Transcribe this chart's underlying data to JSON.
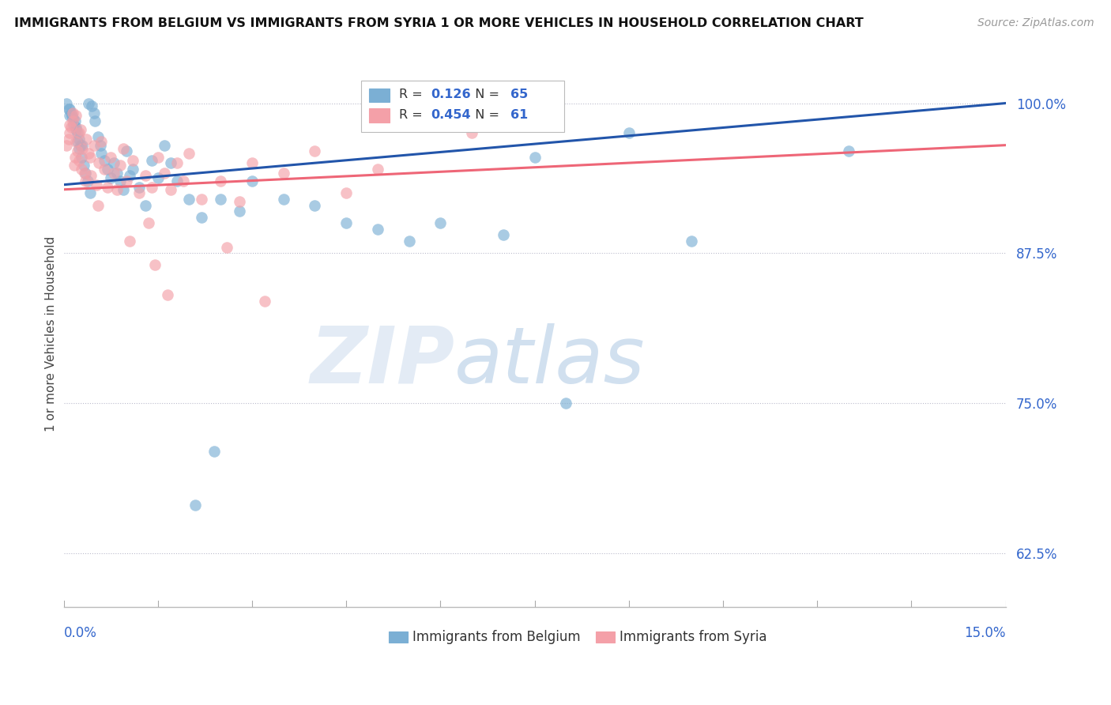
{
  "title": "IMMIGRANTS FROM BELGIUM VS IMMIGRANTS FROM SYRIA 1 OR MORE VEHICLES IN HOUSEHOLD CORRELATION CHART",
  "source": "Source: ZipAtlas.com",
  "ylabel": "1 or more Vehicles in Household",
  "yticks": [
    62.5,
    75.0,
    87.5,
    100.0
  ],
  "ytick_labels": [
    "62.5%",
    "75.0%",
    "87.5%",
    "100.0%"
  ],
  "xlim": [
    0.0,
    15.0
  ],
  "ylim": [
    58.0,
    103.5
  ],
  "belgium_R": 0.126,
  "belgium_N": 65,
  "syria_R": 0.454,
  "syria_N": 61,
  "belgium_color": "#7BAFD4",
  "syria_color": "#F4A0A8",
  "belgium_line_color": "#2255AA",
  "syria_line_color": "#EE6677",
  "belgium_line_y0": 93.2,
  "belgium_line_y1": 100.0,
  "syria_line_y0": 92.8,
  "syria_line_y1": 96.5,
  "belgium_x": [
    0.05,
    0.08,
    0.1,
    0.12,
    0.15,
    0.18,
    0.2,
    0.22,
    0.25,
    0.27,
    0.1,
    0.13,
    0.16,
    0.19,
    0.22,
    0.25,
    0.28,
    0.32,
    0.35,
    0.38,
    0.4,
    0.45,
    0.48,
    0.5,
    0.55,
    0.58,
    0.6,
    0.65,
    0.7,
    0.75,
    0.8,
    0.85,
    0.9,
    0.95,
    1.0,
    1.1,
    1.2,
    1.3,
    1.4,
    1.5,
    1.6,
    1.7,
    1.8,
    2.0,
    2.2,
    2.5,
    2.8,
    3.0,
    3.5,
    4.0,
    4.5,
    5.0,
    5.5,
    6.0,
    7.0,
    7.5,
    8.0,
    9.0,
    10.0,
    12.5,
    0.3,
    0.42,
    1.05,
    2.1,
    2.4
  ],
  "belgium_y": [
    100.0,
    99.5,
    99.0,
    99.2,
    98.8,
    98.5,
    98.0,
    97.5,
    97.0,
    96.5,
    99.5,
    99.0,
    98.2,
    97.8,
    96.8,
    96.2,
    95.5,
    94.8,
    94.2,
    93.5,
    100.0,
    99.8,
    99.2,
    98.5,
    97.2,
    96.5,
    95.8,
    95.2,
    94.5,
    93.8,
    95.0,
    94.2,
    93.5,
    92.8,
    96.0,
    94.5,
    93.0,
    91.5,
    95.2,
    93.8,
    96.5,
    95.0,
    93.5,
    92.0,
    90.5,
    92.0,
    91.0,
    93.5,
    92.0,
    91.5,
    90.0,
    89.5,
    88.5,
    90.0,
    89.0,
    95.5,
    75.0,
    97.5,
    88.5,
    96.0,
    96.5,
    92.5,
    94.0,
    66.5,
    71.0
  ],
  "syria_x": [
    0.05,
    0.08,
    0.1,
    0.12,
    0.15,
    0.18,
    0.2,
    0.22,
    0.25,
    0.28,
    0.1,
    0.14,
    0.17,
    0.2,
    0.24,
    0.27,
    0.3,
    0.33,
    0.36,
    0.4,
    0.44,
    0.48,
    0.52,
    0.56,
    0.6,
    0.65,
    0.7,
    0.75,
    0.8,
    0.85,
    0.9,
    0.95,
    1.0,
    1.1,
    1.2,
    1.3,
    1.4,
    1.5,
    1.6,
    1.7,
    1.8,
    1.9,
    2.0,
    2.2,
    2.5,
    2.8,
    3.0,
    3.5,
    4.0,
    5.0,
    6.5,
    1.05,
    1.45,
    2.6,
    3.2,
    4.5,
    0.35,
    0.55,
    0.42,
    1.35,
    1.65
  ],
  "syria_y": [
    96.5,
    97.0,
    97.5,
    98.0,
    98.5,
    95.5,
    99.0,
    96.0,
    97.5,
    94.5,
    98.2,
    99.2,
    94.8,
    96.8,
    95.2,
    97.8,
    96.2,
    94.2,
    97.0,
    95.8,
    94.0,
    96.5,
    93.2,
    95.0,
    96.8,
    94.5,
    93.0,
    95.5,
    94.2,
    92.8,
    94.8,
    96.2,
    93.5,
    95.2,
    92.5,
    94.0,
    93.0,
    95.5,
    94.2,
    92.8,
    95.0,
    93.5,
    95.8,
    92.0,
    93.5,
    91.8,
    95.0,
    94.2,
    96.0,
    94.5,
    97.5,
    88.5,
    86.5,
    88.0,
    83.5,
    92.5,
    93.5,
    91.5,
    95.5,
    90.0,
    84.0
  ]
}
